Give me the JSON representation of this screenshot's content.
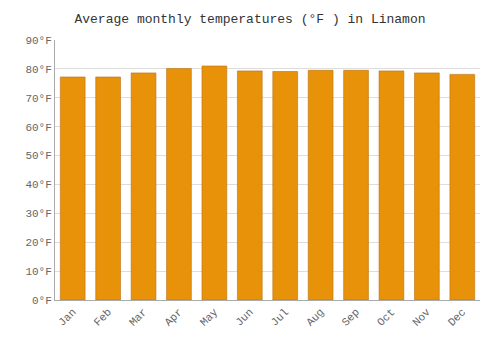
{
  "chart_data": {
    "type": "bar",
    "title": "Average monthly temperatures (°F ) in Linamon",
    "categories": [
      "Jan",
      "Feb",
      "Mar",
      "Apr",
      "May",
      "Jun",
      "Jul",
      "Aug",
      "Sep",
      "Oct",
      "Nov",
      "Dec"
    ],
    "values": [
      77.2,
      77.2,
      78.6,
      80.1,
      81.0,
      79.3,
      79.1,
      79.5,
      79.5,
      79.3,
      78.6,
      78.1
    ],
    "color": "#E8920A",
    "ylim": [
      0,
      90
    ],
    "yticks": [
      {
        "value": 0,
        "label": "0°F"
      },
      {
        "value": 10,
        "label": "10°F"
      },
      {
        "value": 20,
        "label": "20°F"
      },
      {
        "value": 30,
        "label": "30°F"
      },
      {
        "value": 40,
        "label": "40°F"
      },
      {
        "value": 50,
        "label": "50°F"
      },
      {
        "value": 60,
        "label": "60°F"
      },
      {
        "value": 70,
        "label": "70°F"
      },
      {
        "value": 80,
        "label": "80°F"
      },
      {
        "value": 90,
        "label": "90°F"
      }
    ],
    "grid": true
  }
}
